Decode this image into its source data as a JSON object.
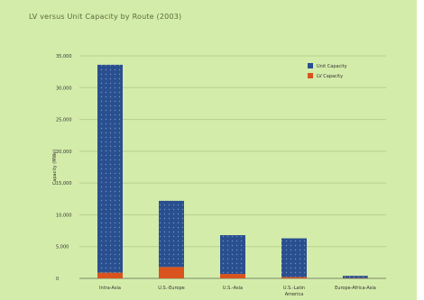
{
  "chart_data": {
    "type": "bar",
    "stacked": true,
    "title": "LV versus Unit Capacity by Route (2003)",
    "ylabel": "Capacity (MWe)",
    "xlabel": "",
    "categories": [
      "Intra-Asia",
      "U.S.-Europe",
      "U.S.-Asia",
      "U.S.-Latin America",
      "Europe-Africa-Asia"
    ],
    "ylim": [
      0,
      35000
    ],
    "yticks": [
      0,
      5000,
      10000,
      15000,
      20000,
      25000,
      30000,
      35000
    ],
    "ytick_labels": [
      "0",
      "5,000",
      "10,000",
      "15,000",
      "20,000",
      "25,000",
      "30,000",
      "35,000"
    ],
    "series": [
      {
        "name": "LV Capacity",
        "color": "#d9531e",
        "values": [
          900,
          1800,
          700,
          200,
          50
        ]
      },
      {
        "name": "Unit Capacity",
        "color": "#2a4f8f",
        "values": [
          32700,
          10400,
          6100,
          6100,
          350
        ]
      }
    ],
    "legend_position": "top-right",
    "grid": true
  }
}
